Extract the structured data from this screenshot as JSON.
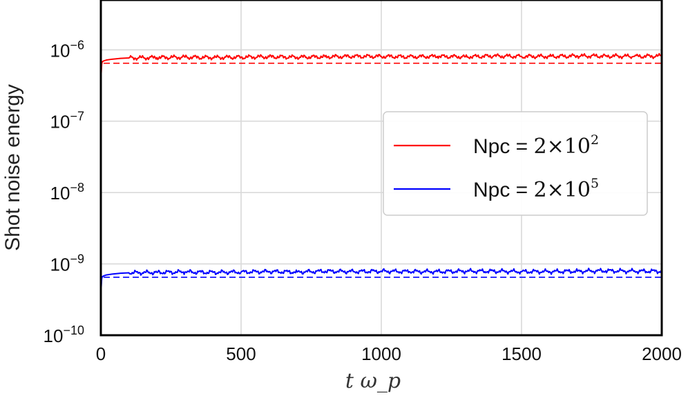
{
  "chart_data": {
    "type": "line",
    "title": "",
    "xlabel": "t ω_p",
    "ylabel": "Shot noise energy",
    "xlim": [
      0,
      2000
    ],
    "ylim": [
      1e-10,
      5e-06
    ],
    "yscale": "log",
    "grid": true,
    "legend_position": "center-right",
    "x_ticks": [
      {
        "value": 0,
        "label": "0"
      },
      {
        "value": 500,
        "label": "500"
      },
      {
        "value": 1000,
        "label": "1000"
      },
      {
        "value": 1500,
        "label": "1500"
      },
      {
        "value": 2000,
        "label": "2000"
      }
    ],
    "y_ticks": [
      {
        "value": 1e-10,
        "base": "10",
        "exp": "−10"
      },
      {
        "value": 1e-09,
        "base": "10",
        "exp": "−9"
      },
      {
        "value": 1e-08,
        "base": "10",
        "exp": "−8"
      },
      {
        "value": 1e-07,
        "base": "10",
        "exp": "−7"
      },
      {
        "value": 1e-06,
        "base": "10",
        "exp": "−6"
      }
    ],
    "series": [
      {
        "name_prefix": "Npc = ",
        "name_math_base": "2×10",
        "name_math_exp": "2",
        "color": "#ff0000",
        "x": [
          0,
          1,
          3,
          5,
          10,
          20,
          40,
          70,
          100,
          200,
          300,
          400,
          500,
          600,
          700,
          800,
          900,
          1000,
          1100,
          1200,
          1300,
          1400,
          1500,
          1600,
          1700,
          1800,
          1900,
          2000
        ],
        "y": [
          1e-10,
          4.5e-07,
          6.3e-07,
          6.8e-07,
          7e-07,
          7.2e-07,
          7.4e-07,
          7.6e-07,
          7.7e-07,
          7.8e-07,
          7.9e-07,
          7.8e-07,
          7.9e-07,
          8e-07,
          7.9e-07,
          8e-07,
          8.1e-07,
          8.1e-07,
          8e-07,
          8.1e-07,
          8e-07,
          8.2e-07,
          8.1e-07,
          8.1e-07,
          8.2e-07,
          8.2e-07,
          8.1e-07,
          8.2e-07
        ],
        "reference_value": 6.5e-07
      },
      {
        "name_prefix": "Npc = ",
        "name_math_base": "2×10",
        "name_math_exp": "5",
        "color": "#0000ff",
        "x": [
          0,
          1,
          3,
          5,
          10,
          20,
          40,
          70,
          100,
          200,
          300,
          400,
          500,
          600,
          700,
          800,
          900,
          1000,
          1100,
          1200,
          1300,
          1400,
          1500,
          1600,
          1700,
          1800,
          1900,
          2000
        ],
        "y": [
          1e-10,
          4.5e-10,
          6.2e-10,
          6.6e-10,
          6.8e-10,
          7e-10,
          7.2e-10,
          7.4e-10,
          7.5e-10,
          7.6e-10,
          7.7e-10,
          7.6e-10,
          7.7e-10,
          7.8e-10,
          7.7e-10,
          7.9e-10,
          7.8e-10,
          7.9e-10,
          7.8e-10,
          7.8e-10,
          7.9e-10,
          7.9e-10,
          7.8e-10,
          7.8e-10,
          7.9e-10,
          8e-10,
          7.9e-10,
          7.9e-10
        ],
        "reference_value": 6.5e-10
      }
    ]
  }
}
